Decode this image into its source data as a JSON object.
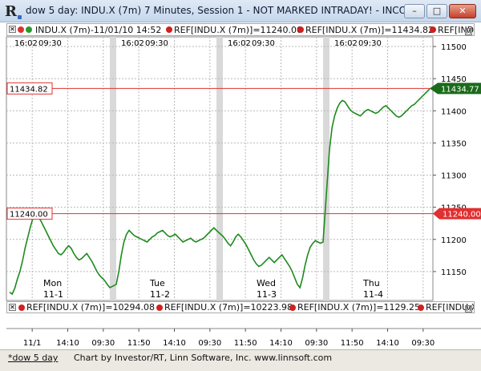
{
  "window": {
    "title": "dow 5 day: INDU.X (7m) 7 Minutes, Session 1 - NOT MARKED INTRADAY! - INCO...",
    "minimize": "–",
    "maximize": "□",
    "close": "✕",
    "app_icon": "R"
  },
  "info_bar": {
    "symbol": "INDU.X (7m)-11/01/10 14:52",
    "ref1": "REF[INDU.X (7m)]=11240.00",
    "ref2": "REF[INDU.X (7m)]=11434.82",
    "ref3": "REF[INDU.X (7",
    "close_glyph": "✕",
    "max_glyph": "M"
  },
  "bottom_bar": {
    "ref1": "REF[INDU.X (7m)]=10294.08",
    "ref2": "REF[INDU.X (7m)]=10223.98",
    "ref3": "REF[INDU.X (7m)]=1129.25",
    "ref4": "REF[INDU.X",
    "close_glyph": "✕",
    "max_glyph": "M"
  },
  "status_bar": {
    "tab": "*dow 5 day",
    "credit": "Chart by Investor/RT, Linn Software, Inc. www.linnsoft.com"
  },
  "colors": {
    "price_line": "#1e8a1e",
    "ref_line": "#e03030",
    "grid": "#b9b9b9",
    "current_box": "#1a6b1a",
    "session_separator": "#d9d9d9"
  },
  "chart_data": {
    "type": "line",
    "ylim": [
      11105,
      11515
    ],
    "y_ticks": [
      11150,
      11200,
      11250,
      11300,
      11350,
      11400,
      11450,
      11500
    ],
    "session_labels": [
      {
        "time": "16:02",
        "open": "09:30"
      },
      {
        "time": "16:02",
        "open": "09:30"
      },
      {
        "time": "16:02",
        "open": "09:30"
      },
      {
        "time": "16:02",
        "open": "09:30"
      }
    ],
    "day_labels": [
      {
        "day": "Mon",
        "date": "11-1"
      },
      {
        "day": "Tue",
        "date": "11-2"
      },
      {
        "day": "Wed",
        "date": "11-3"
      },
      {
        "day": "Thu",
        "date": "11-4"
      }
    ],
    "x_tick_labels": [
      "11/1",
      "14:10",
      "09:30",
      "11:50",
      "14:10",
      "09:30",
      "11:50",
      "14:10",
      "09:30",
      "11:50",
      "14:10",
      "09:30"
    ],
    "reference_lines": [
      {
        "value": 11434.82,
        "label": "11434.82"
      },
      {
        "value": 11240.0,
        "label": "11240.00"
      }
    ],
    "current_value": {
      "value": 11434.77,
      "label": "11434.77"
    },
    "series": [
      {
        "days": [
          [
            11118,
            11115,
            11124,
            11138,
            11150,
            11166,
            11186,
            11202,
            11218,
            11232,
            11238,
            11235,
            11230,
            11222,
            11214,
            11206,
            11198,
            11190,
            11184,
            11178,
            11176,
            11180,
            11186,
            11190,
            11186,
            11178,
            11172,
            11168,
            11170,
            11174,
            11178,
            11172,
            11166,
            11158,
            11150,
            11144,
            11140,
            11136,
            11130,
            11125
          ],
          [
            11130,
            11150,
            11176,
            11196,
            11208,
            11214,
            11210,
            11206,
            11204,
            11202,
            11200,
            11198,
            11196,
            11200,
            11204,
            11206,
            11210,
            11212,
            11214,
            11210,
            11206,
            11204,
            11206,
            11208,
            11204,
            11200,
            11196,
            11198,
            11200,
            11202,
            11198,
            11196,
            11198,
            11200,
            11202,
            11206,
            11210,
            11214,
            11218,
            11214
          ],
          [
            11205,
            11200,
            11194,
            11190,
            11196,
            11204,
            11208,
            11204,
            11198,
            11192,
            11184,
            11176,
            11168,
            11162,
            11158,
            11160,
            11164,
            11168,
            11172,
            11168,
            11164,
            11168,
            11172,
            11176,
            11170,
            11164,
            11158,
            11150,
            11140,
            11130,
            11125,
            11140,
            11160,
            11176,
            11188,
            11194,
            11198,
            11196,
            11194,
            11196
          ],
          [
            11340,
            11374,
            11392,
            11404,
            11412,
            11416,
            11414,
            11408,
            11402,
            11398,
            11396,
            11394,
            11392,
            11396,
            11400,
            11402,
            11400,
            11398,
            11396,
            11398,
            11402,
            11406,
            11408,
            11404,
            11400,
            11396,
            11392,
            11390,
            11392,
            11396,
            11400,
            11404,
            11408,
            11410,
            11414,
            11418,
            11422,
            11426,
            11430,
            11434
          ]
        ]
      }
    ]
  }
}
